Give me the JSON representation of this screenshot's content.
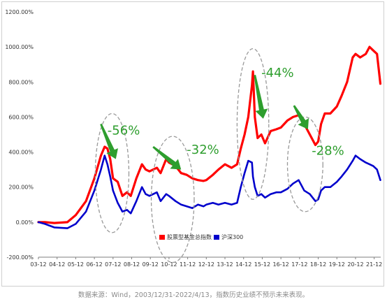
{
  "chart_data": {
    "type": "line",
    "xlabel": "",
    "ylabel": "",
    "ylim": [
      -200,
      1200
    ],
    "yticks": [
      "-200.00%",
      "0.00%",
      "200.00%",
      "400.00%",
      "600.00%",
      "800.00%",
      "1000.00%",
      "1200.00%"
    ],
    "xticks": [
      "03-12",
      "04-12",
      "05-12",
      "06-12",
      "07-12",
      "08-12",
      "09-12",
      "10-12",
      "11-12",
      "12-12",
      "13-12",
      "14-12",
      "15-12",
      "16-12",
      "17-12",
      "18-12",
      "19-12",
      "20-12",
      "21-12"
    ],
    "grid": false,
    "legend": "bottom-center",
    "colors": {
      "fund": "#ff0000",
      "csi300": "#0000cc",
      "annotation": "#2e9e2e",
      "ellipse": "#999999"
    },
    "series": [
      {
        "name": "股票型基金总指数",
        "x": [
          2003.95,
          2004.3,
          2004.8,
          2005.5,
          2005.95,
          2006.5,
          2006.95,
          2007.3,
          2007.5,
          2007.65,
          2007.8,
          2007.95,
          2008.2,
          2008.45,
          2008.7,
          2008.9,
          2009.2,
          2009.5,
          2009.7,
          2009.9,
          2010.3,
          2010.5,
          2010.8,
          2010.95,
          2011.3,
          2011.6,
          2011.9,
          2012.2,
          2012.5,
          2012.8,
          2012.95,
          2013.3,
          2013.6,
          2013.95,
          2014.3,
          2014.6,
          2014.8,
          2015.0,
          2015.2,
          2015.4,
          2015.45,
          2015.55,
          2015.7,
          2015.9,
          2016.1,
          2016.4,
          2016.7,
          2016.95,
          2017.3,
          2017.6,
          2017.9,
          2018.2,
          2018.5,
          2018.8,
          2018.95,
          2019.1,
          2019.3,
          2019.6,
          2019.95,
          2020.2,
          2020.5,
          2020.8,
          2020.95,
          2021.2,
          2021.5,
          2021.7,
          2021.9,
          2022.1,
          2022.28
        ],
        "values": [
          0,
          0,
          -5,
          0,
          40,
          120,
          250,
          380,
          430,
          420,
          360,
          250,
          230,
          150,
          170,
          150,
          250,
          330,
          300,
          290,
          310,
          280,
          360,
          340,
          320,
          280,
          270,
          250,
          240,
          235,
          240,
          270,
          300,
          330,
          310,
          330,
          420,
          500,
          600,
          780,
          860,
          600,
          480,
          500,
          450,
          520,
          530,
          540,
          580,
          600,
          610,
          560,
          500,
          440,
          460,
          560,
          620,
          620,
          660,
          720,
          800,
          940,
          960,
          940,
          960,
          1000,
          980,
          960,
          790
        ]
      },
      {
        "name": "沪深300",
        "x": [
          2003.95,
          2004.3,
          2004.8,
          2005.5,
          2005.95,
          2006.5,
          2006.95,
          2007.3,
          2007.5,
          2007.65,
          2007.8,
          2007.95,
          2008.2,
          2008.45,
          2008.7,
          2008.9,
          2009.2,
          2009.5,
          2009.7,
          2009.9,
          2010.3,
          2010.5,
          2010.8,
          2010.95,
          2011.3,
          2011.6,
          2011.9,
          2012.2,
          2012.5,
          2012.8,
          2012.95,
          2013.3,
          2013.6,
          2013.95,
          2014.3,
          2014.6,
          2014.8,
          2015.0,
          2015.2,
          2015.4,
          2015.45,
          2015.55,
          2015.7,
          2015.9,
          2016.1,
          2016.4,
          2016.7,
          2016.95,
          2017.3,
          2017.6,
          2017.9,
          2018.2,
          2018.5,
          2018.8,
          2018.95,
          2019.1,
          2019.3,
          2019.6,
          2019.95,
          2020.2,
          2020.5,
          2020.8,
          2020.95,
          2021.2,
          2021.5,
          2021.7,
          2021.9,
          2022.1,
          2022.28
        ],
        "values": [
          0,
          -10,
          -30,
          -35,
          -10,
          60,
          180,
          300,
          380,
          330,
          260,
          180,
          110,
          60,
          70,
          50,
          120,
          200,
          160,
          150,
          170,
          120,
          160,
          150,
          120,
          100,
          90,
          80,
          100,
          90,
          100,
          110,
          100,
          110,
          100,
          110,
          200,
          280,
          350,
          340,
          260,
          200,
          150,
          160,
          140,
          160,
          170,
          170,
          190,
          220,
          240,
          180,
          160,
          120,
          130,
          180,
          200,
          200,
          230,
          260,
          300,
          350,
          380,
          360,
          340,
          330,
          320,
          300,
          240
        ]
      }
    ],
    "annotations": [
      "-56%",
      "-32%",
      "-44%",
      "-28%"
    ]
  },
  "source_note": "数据来源：Wind，2003/12/31-2022/4/13，指数历史业绩不预示未来表现。"
}
